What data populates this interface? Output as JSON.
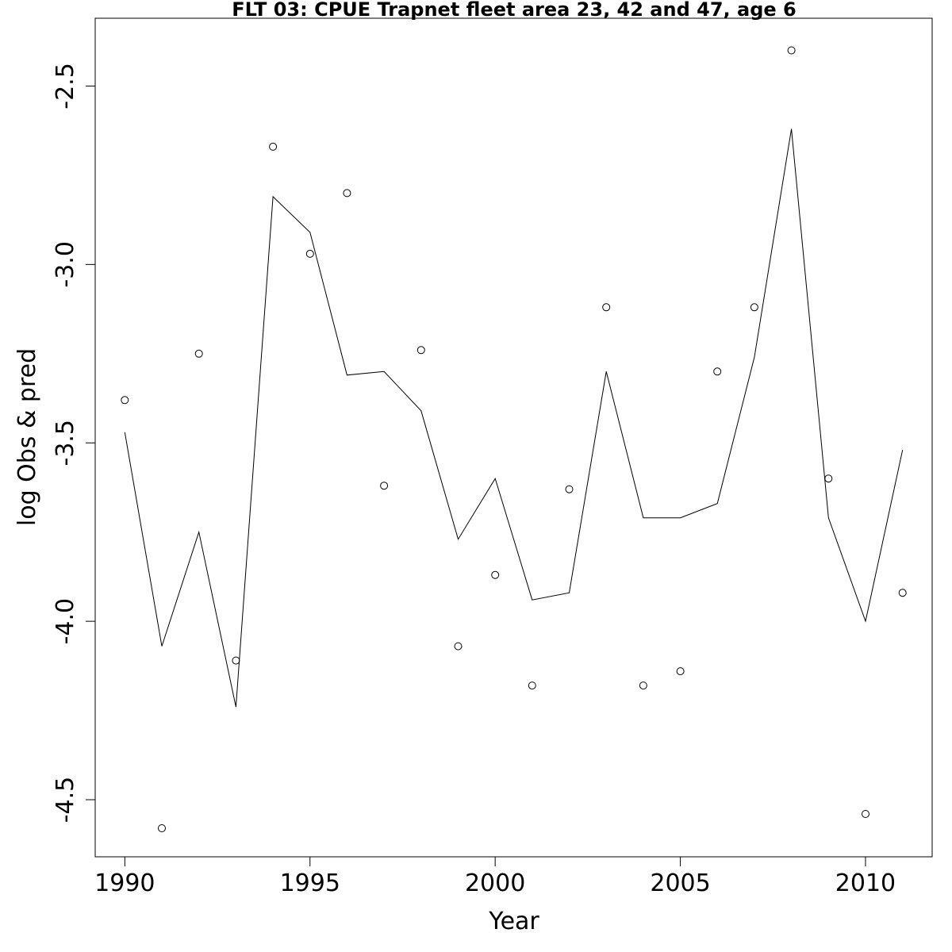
{
  "chart_data": {
    "type": "line",
    "title": "FLT 03: CPUE Trapnet fleet area 23, 42 and 47, age 6",
    "xlabel": "Year",
    "ylabel": "log Obs & pred",
    "xlim": [
      1989.2,
      2011.8
    ],
    "ylim": [
      -4.66,
      -2.31
    ],
    "x_ticks": [
      1990,
      1995,
      2000,
      2005,
      2010
    ],
    "x_tick_labels": [
      "1990",
      "1995",
      "2000",
      "2005",
      "2010"
    ],
    "y_ticks": [
      -4.5,
      -4.0,
      -3.5,
      -3.0,
      -2.5
    ],
    "y_tick_labels": [
      "-4.5",
      "-4.0",
      "-3.5",
      "-3.0",
      "-2.5"
    ],
    "x": [
      1990,
      1991,
      1992,
      1993,
      1994,
      1995,
      1996,
      1997,
      1998,
      1999,
      2000,
      2001,
      2002,
      2003,
      2004,
      2005,
      2006,
      2007,
      2008,
      2009,
      2010,
      2011
    ],
    "series": [
      {
        "kind": "points",
        "values": [
          -3.38,
          -4.58,
          -3.25,
          -4.11,
          -2.67,
          -2.97,
          -2.8,
          -3.62,
          -3.24,
          -4.07,
          -3.87,
          -4.18,
          -3.63,
          -3.12,
          -4.18,
          -4.14,
          -3.3,
          -3.12,
          -2.4,
          -3.6,
          -4.54,
          -3.92
        ]
      },
      {
        "kind": "line",
        "values": [
          -3.47,
          -4.07,
          -3.75,
          -4.24,
          -2.81,
          -2.91,
          -3.31,
          -3.3,
          -3.41,
          -3.77,
          -3.6,
          -3.94,
          -3.92,
          -3.3,
          -3.71,
          -3.71,
          -3.67,
          -3.26,
          -2.62,
          -3.71,
          -4.0,
          -3.52
        ]
      }
    ]
  }
}
